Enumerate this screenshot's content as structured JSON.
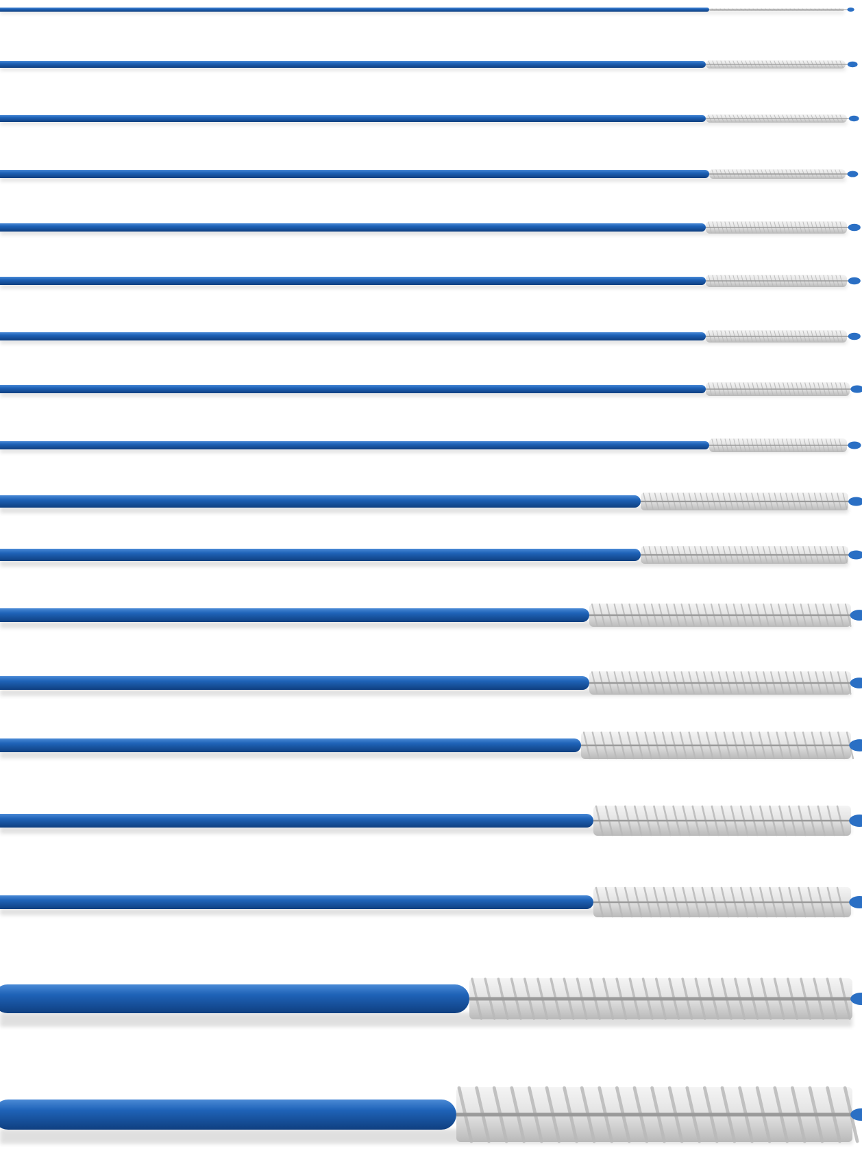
{
  "image": {
    "subject": "cleaning-brushes",
    "background_color": "#ffffff",
    "handle_color": "#1f63b8",
    "handle_highlight_color": "#4a8ad6",
    "handle_shadow_color": "#0f3f80",
    "bristle_color": "#e6e6e6",
    "bristle_shadow_color": "#b9b9b9",
    "tip_color": "#2a6fc4",
    "brush_count": 18
  }
}
